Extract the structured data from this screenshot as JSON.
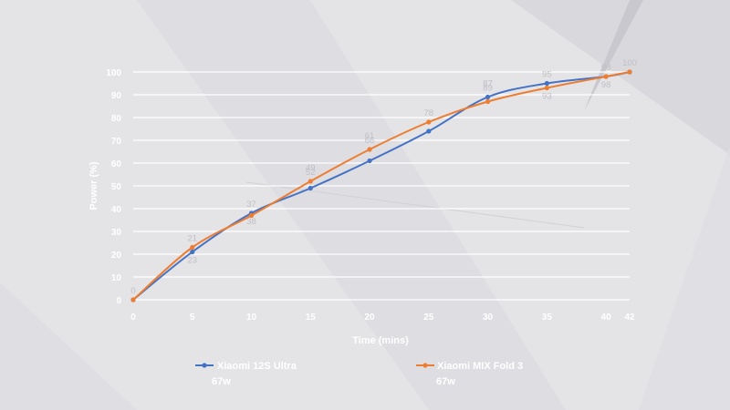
{
  "chart_data": {
    "type": "line",
    "title": "",
    "xlabel": "Time (mins)",
    "ylabel": "Power (%)",
    "x": [
      0,
      5,
      10,
      15,
      20,
      25,
      30,
      35,
      40,
      42
    ],
    "xticks": [
      "0",
      "5",
      "10",
      "15",
      "20",
      "25",
      "30",
      "35",
      "40",
      "42"
    ],
    "yticks": [
      0,
      10,
      20,
      30,
      40,
      50,
      60,
      70,
      80,
      90,
      100
    ],
    "ylim": [
      0,
      100
    ],
    "grid": true,
    "legend_position": "bottom",
    "series": [
      {
        "name": "Xiaomi 12S Ultra",
        "subname": "67w",
        "color": "#4472c4",
        "values": [
          0,
          21,
          38,
          49,
          61,
          74,
          89,
          95,
          98,
          100
        ]
      },
      {
        "name": "Xiaomi MIX Fold 3",
        "subname": "67w",
        "color": "#ed7d31",
        "values": [
          0,
          23,
          37,
          52,
          66,
          78,
          87,
          93,
          98,
          100
        ]
      }
    ]
  },
  "data_labels": [
    {
      "text": "0",
      "x": 0,
      "y": 0,
      "pos": "above"
    },
    {
      "text": "21",
      "x": 5,
      "y": 23,
      "pos": "above"
    },
    {
      "text": "23",
      "x": 5,
      "y": 21,
      "pos": "below"
    },
    {
      "text": "37",
      "x": 10,
      "y": 38,
      "pos": "above"
    },
    {
      "text": "38",
      "x": 10,
      "y": 38,
      "pos": "below"
    },
    {
      "text": "52",
      "x": 15,
      "y": 52,
      "pos": "above"
    },
    {
      "text": "49",
      "x": 15,
      "y": 52,
      "pos": "above2"
    },
    {
      "text": "66",
      "x": 20,
      "y": 66,
      "pos": "above"
    },
    {
      "text": "61",
      "x": 20,
      "y": 66,
      "pos": "above2"
    },
    {
      "text": "78",
      "x": 25,
      "y": 78,
      "pos": "above"
    },
    {
      "text": "89",
      "x": 30,
      "y": 89,
      "pos": "above"
    },
    {
      "text": "87",
      "x": 30,
      "y": 89,
      "pos": "above2"
    },
    {
      "text": "95",
      "x": 35,
      "y": 95,
      "pos": "above"
    },
    {
      "text": "93",
      "x": 35,
      "y": 93,
      "pos": "below"
    },
    {
      "text": "98",
      "x": 40,
      "y": 98,
      "pos": "above"
    },
    {
      "text": "98",
      "x": 40,
      "y": 98,
      "pos": "below"
    },
    {
      "text": "100",
      "x": 42,
      "y": 100,
      "pos": "above"
    }
  ]
}
